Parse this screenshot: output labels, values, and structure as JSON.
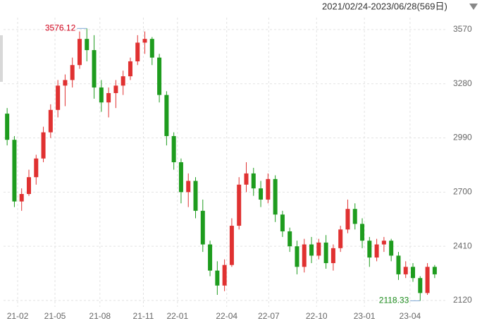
{
  "chart_data": {
    "type": "candlestick",
    "subtitle": "2021/02/24-2023/06/28(569日)",
    "up_color": "#e03131",
    "down_color": "#1e9c1e",
    "grid": true,
    "open": [
      3120,
      2980,
      2650,
      2690,
      2780,
      2880,
      3020,
      3140,
      3270,
      3300,
      3380,
      3520,
      3460,
      3260,
      3180,
      3230,
      3270,
      3320,
      3400,
      3500,
      3520,
      3420,
      3220,
      3000,
      2860,
      2700,
      2760,
      2600,
      2420,
      2280,
      2200,
      2310,
      2520,
      2740,
      2800,
      2720,
      2660,
      2770,
      2580,
      2490,
      2410,
      2300,
      2420,
      2360,
      2430,
      2320,
      2400,
      2500,
      2610,
      2530,
      2440,
      2350,
      2420,
      2440,
      2360,
      2260,
      2300,
      2240,
      2160,
      2300
    ],
    "high": [
      3150,
      3000,
      2720,
      2820,
      2900,
      3050,
      3170,
      3300,
      3330,
      3420,
      3560,
      3576.12,
      3540,
      3300,
      3260,
      3300,
      3350,
      3420,
      3540,
      3560,
      3530,
      3440,
      3240,
      3020,
      2880,
      2800,
      2780,
      2660,
      2440,
      2330,
      2340,
      2560,
      2780,
      2860,
      2830,
      2760,
      2800,
      2790,
      2600,
      2510,
      2440,
      2450,
      2460,
      2450,
      2470,
      2420,
      2520,
      2660,
      2640,
      2560,
      2460,
      2450,
      2460,
      2450,
      2380,
      2330,
      2320,
      2250,
      2320,
      2310
    ],
    "low": [
      2950,
      2620,
      2600,
      2680,
      2740,
      2860,
      2990,
      3100,
      3160,
      3260,
      3360,
      3400,
      3200,
      3130,
      3100,
      3150,
      3220,
      3300,
      3380,
      3440,
      3380,
      3180,
      2950,
      2820,
      2640,
      2620,
      2560,
      2380,
      2250,
      2150,
      2170,
      2300,
      2500,
      2700,
      2680,
      2620,
      2640,
      2540,
      2460,
      2380,
      2260,
      2270,
      2320,
      2340,
      2290,
      2280,
      2380,
      2480,
      2500,
      2400,
      2300,
      2330,
      2380,
      2330,
      2230,
      2240,
      2220,
      2118.33,
      2150,
      2240
    ],
    "close": [
      2980,
      2650,
      2690,
      2780,
      2880,
      3020,
      3140,
      3270,
      3300,
      3380,
      3520,
      3460,
      3260,
      3180,
      3230,
      3270,
      3320,
      3400,
      3500,
      3520,
      3420,
      3220,
      3000,
      2860,
      2700,
      2760,
      2600,
      2420,
      2280,
      2200,
      2310,
      2520,
      2740,
      2800,
      2720,
      2660,
      2770,
      2580,
      2490,
      2410,
      2300,
      2420,
      2360,
      2430,
      2320,
      2400,
      2500,
      2610,
      2530,
      2440,
      2350,
      2420,
      2440,
      2360,
      2260,
      2300,
      2240,
      2160,
      2300,
      2260
    ],
    "xlim": [
      -0.5,
      59.5
    ],
    "xticks": [
      {
        "value": 1.45,
        "label": "21-02"
      },
      {
        "value": 6.6,
        "label": "21-05"
      },
      {
        "value": 12.8,
        "label": "21-08"
      },
      {
        "value": 18.8,
        "label": "21-11"
      },
      {
        "value": 23.5,
        "label": "22-01"
      },
      {
        "value": 30.3,
        "label": "22-04"
      },
      {
        "value": 36.1,
        "label": "22-07"
      },
      {
        "value": 42.7,
        "label": "22-10"
      },
      {
        "value": 49.3,
        "label": "23-01"
      },
      {
        "value": 55.6,
        "label": "23-04"
      }
    ],
    "ylim": [
      2086,
      3615
    ],
    "yticks": [
      3570,
      3280,
      2990,
      2700,
      2410,
      2120
    ]
  }
}
